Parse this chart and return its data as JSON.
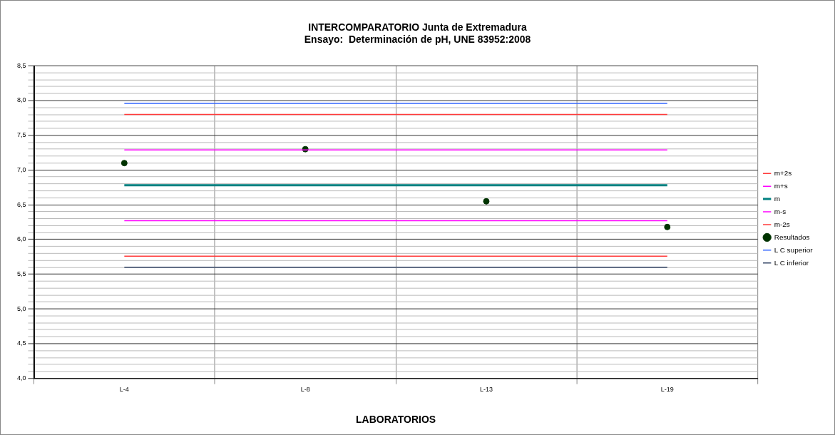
{
  "chart_data": {
    "type": "line",
    "title": "INTERCOMPARATORIO Junta de Extremadura",
    "subtitle": "Ensayo:  Determinación de pH, UNE 83952:2008",
    "xlabel": "LABORATORIOS",
    "categories": [
      "L-4",
      "L-8",
      "L-13",
      "L-19"
    ],
    "series": [
      {
        "name": "m+2s",
        "color": "#ff3b3b",
        "values": [
          7.8,
          7.8,
          7.8,
          7.8
        ]
      },
      {
        "name": "m+s",
        "color": "#ff00ff",
        "values": [
          7.29,
          7.29,
          7.29,
          7.29
        ]
      },
      {
        "name": "m",
        "color": "#008080",
        "values": [
          6.78,
          6.78,
          6.78,
          6.78
        ]
      },
      {
        "name": "m-s",
        "color": "#ff00ff",
        "values": [
          6.27,
          6.27,
          6.27,
          6.27
        ]
      },
      {
        "name": "m-2s",
        "color": "#ff3b3b",
        "values": [
          5.76,
          5.76,
          5.76,
          5.76
        ]
      },
      {
        "name": "Resultados",
        "type": "scatter",
        "marker": "circle",
        "color": "#003300",
        "values": [
          7.1,
          7.3,
          6.55,
          6.18
        ]
      },
      {
        "name": "L C superior",
        "color": "#3366ff",
        "values": [
          7.96,
          7.96,
          7.96,
          7.96
        ]
      },
      {
        "name": "L C inferior",
        "color": "#334466",
        "values": [
          5.6,
          5.6,
          5.6,
          5.6
        ]
      }
    ],
    "ylim": [
      4.0,
      8.5
    ],
    "yticks": [
      {
        "value": 4.0,
        "label": "4,0"
      },
      {
        "value": 4.1,
        "label": null
      },
      {
        "value": 4.2,
        "label": null
      },
      {
        "value": 4.3,
        "label": null
      },
      {
        "value": 4.4,
        "label": null
      },
      {
        "value": 4.5,
        "label": "4,5"
      },
      {
        "value": 4.6,
        "label": null
      },
      {
        "value": 4.7,
        "label": null
      },
      {
        "value": 4.8,
        "label": null
      },
      {
        "value": 4.9,
        "label": null
      },
      {
        "value": 5.0,
        "label": "5,0"
      },
      {
        "value": 5.1,
        "label": null
      },
      {
        "value": 5.2,
        "label": null
      },
      {
        "value": 5.3,
        "label": null
      },
      {
        "value": 5.4,
        "label": null
      },
      {
        "value": 5.5,
        "label": "5,5"
      },
      {
        "value": 5.6,
        "label": null
      },
      {
        "value": 5.7,
        "label": null
      },
      {
        "value": 5.8,
        "label": null
      },
      {
        "value": 5.9,
        "label": null
      },
      {
        "value": 6.0,
        "label": "6,0"
      },
      {
        "value": 6.1,
        "label": null
      },
      {
        "value": 6.2,
        "label": null
      },
      {
        "value": 6.3,
        "label": null
      },
      {
        "value": 6.4,
        "label": null
      },
      {
        "value": 6.5,
        "label": "6,5"
      },
      {
        "value": 6.6,
        "label": null
      },
      {
        "value": 6.7,
        "label": null
      },
      {
        "value": 6.8,
        "label": null
      },
      {
        "value": 6.9,
        "label": null
      },
      {
        "value": 7.0,
        "label": "7,0"
      },
      {
        "value": 7.1,
        "label": null
      },
      {
        "value": 7.2,
        "label": null
      },
      {
        "value": 7.3,
        "label": null
      },
      {
        "value": 7.4,
        "label": null
      },
      {
        "value": 7.5,
        "label": "7,5"
      },
      {
        "value": 7.6,
        "label": null
      },
      {
        "value": 7.7,
        "label": null
      },
      {
        "value": 7.8,
        "label": null
      },
      {
        "value": 7.9,
        "label": null
      },
      {
        "value": 8.0,
        "label": "8,0"
      },
      {
        "value": 8.1,
        "label": null
      },
      {
        "value": 8.2,
        "label": null
      },
      {
        "value": 8.3,
        "label": null
      },
      {
        "value": 8.4,
        "label": null
      },
      {
        "value": 8.5,
        "label": "8,5"
      }
    ],
    "grid": true,
    "legend": "right",
    "line_style": "solid"
  }
}
